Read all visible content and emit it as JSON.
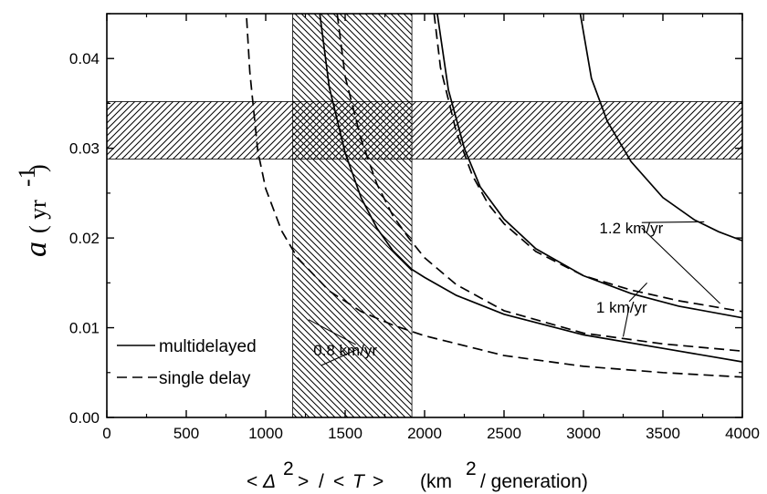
{
  "chart_data": {
    "type": "line",
    "title": "",
    "xlabel": {
      "lt1": "<",
      "delta": "Δ",
      "sup2": "2",
      "gt1": ">",
      "slash": "/",
      "lt2": "<",
      "T": "T",
      "gt2": ">",
      "unit_open": "(km",
      "unit_sup": "2",
      "unit_rest": "/ generation)"
    },
    "ylabel": {
      "symbol": "a",
      "unit_open": "( yr",
      "unit_sup": "-1",
      "unit_close": ")"
    },
    "xlim": [
      0,
      4000
    ],
    "ylim": [
      0,
      0.045
    ],
    "xticks": [
      0,
      500,
      1000,
      1500,
      2000,
      2500,
      3000,
      3500,
      4000
    ],
    "xtick_labels": [
      "0",
      "500",
      "1000",
      "1500",
      "2000",
      "2500",
      "3000",
      "3500",
      "4000"
    ],
    "yticks": [
      0,
      0.01,
      0.02,
      0.03,
      0.04
    ],
    "ytick_labels": [
      "0.00",
      "0.01",
      "0.02",
      "0.03",
      "0.04"
    ],
    "grid": false,
    "legend_position": "bottom-left",
    "legend": [
      {
        "label": "multidelayed",
        "style": "solid"
      },
      {
        "label": "single delay",
        "style": "dashed"
      }
    ],
    "shaded_regions": [
      {
        "orientation": "vertical",
        "x_range": [
          1170,
          1920
        ],
        "hatch": "backslash"
      },
      {
        "orientation": "horizontal",
        "y_range": [
          0.0288,
          0.0352
        ],
        "hatch": "slash"
      }
    ],
    "series": [
      {
        "name": "0.8 km/yr",
        "style": "solid",
        "x": [
          1340,
          1400,
          1500,
          1600,
          1700,
          1800,
          1920,
          2000,
          2200,
          2500,
          3000,
          3500,
          4000
        ],
        "y": [
          0.045,
          0.0368,
          0.0295,
          0.0245,
          0.0211,
          0.0186,
          0.0165,
          0.0156,
          0.0136,
          0.0115,
          0.0092,
          0.0077,
          0.0062
        ]
      },
      {
        "name": "0.8 km/yr",
        "style": "dashed",
        "x": [
          880,
          900,
          950,
          1000,
          1100,
          1200,
          1400,
          1600,
          1800,
          2000,
          2500,
          3000,
          3500,
          4000
        ],
        "y": [
          0.0445,
          0.0385,
          0.0297,
          0.0255,
          0.0208,
          0.0178,
          0.0141,
          0.0118,
          0.0103,
          0.0091,
          0.0069,
          0.0057,
          0.005,
          0.0045
        ]
      },
      {
        "name": "1 km/yr",
        "style": "solid",
        "x": [
          2080,
          2150,
          2250,
          2350,
          2500,
          2700,
          3000,
          3300,
          3600,
          4000
        ],
        "y": [
          0.045,
          0.0365,
          0.03,
          0.0257,
          0.0221,
          0.0188,
          0.0158,
          0.0138,
          0.0124,
          0.0111
        ]
      },
      {
        "name": "1 km/yr",
        "style": "dashed",
        "x": [
          1450,
          1500,
          1600,
          1700,
          1800,
          1900,
          2000,
          2200,
          2500,
          3000,
          3500,
          4000
        ],
        "y": [
          0.045,
          0.038,
          0.031,
          0.026,
          0.0225,
          0.02,
          0.0178,
          0.0148,
          0.0119,
          0.0094,
          0.0082,
          0.0074
        ]
      },
      {
        "name": "1.2 km/yr",
        "style": "solid",
        "x": [
          2980,
          3050,
          3150,
          3300,
          3500,
          3700,
          3850,
          4000
        ],
        "y": [
          0.045,
          0.0378,
          0.033,
          0.0285,
          0.0245,
          0.022,
          0.0207,
          0.0197
        ]
      },
      {
        "name": "1.2 km/yr",
        "style": "dashed",
        "x": [
          2060,
          2100,
          2200,
          2300,
          2400,
          2500,
          2700,
          3000,
          3300,
          3600,
          4000
        ],
        "y": [
          0.045,
          0.039,
          0.0318,
          0.027,
          0.0238,
          0.0216,
          0.0185,
          0.0158,
          0.0142,
          0.013,
          0.0118
        ]
      }
    ],
    "annotations": [
      {
        "text": "0.8 km/yr",
        "anchor_x": 1300,
        "anchor_y": 0.0069,
        "targets": [
          [
            1270,
            0.0109
          ],
          [
            1350,
            0.0058
          ]
        ]
      },
      {
        "text": "1 km/yr",
        "anchor_x": 3080,
        "anchor_y": 0.0117,
        "targets": [
          [
            3400,
            0.015
          ],
          [
            3250,
            0.009
          ]
        ]
      },
      {
        "text": "1.2 km/yr",
        "anchor_x": 3100,
        "anchor_y": 0.0205,
        "targets": [
          [
            3760,
            0.0218
          ],
          [
            3860,
            0.0127
          ]
        ]
      }
    ]
  },
  "colors": {
    "line": "#000000",
    "background": "#ffffff",
    "hatch": "#000000"
  }
}
